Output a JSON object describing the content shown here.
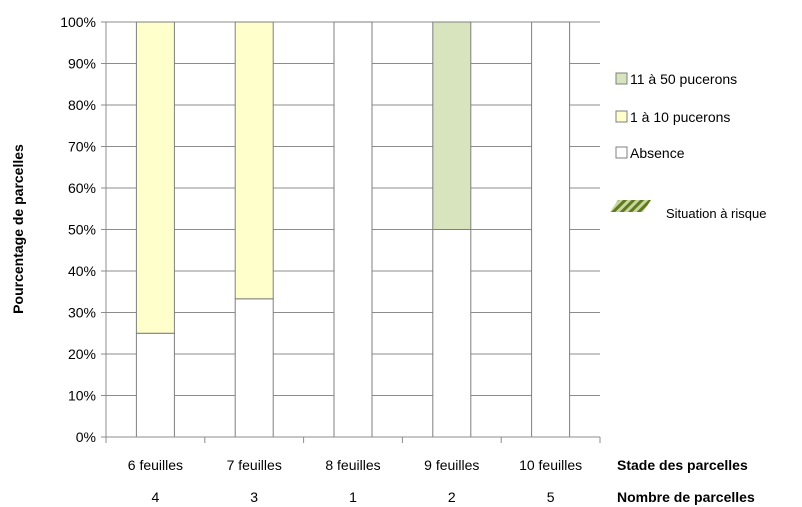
{
  "chart_data": {
    "type": "bar",
    "stacked": true,
    "ylabel": "Pourcentage de parcelles",
    "ylim": [
      0,
      100
    ],
    "yticks": [
      "0%",
      "10%",
      "20%",
      "30%",
      "40%",
      "50%",
      "60%",
      "70%",
      "80%",
      "90%",
      "100%"
    ],
    "grid": true,
    "categories": [
      "6 feuilles",
      "7 feuilles",
      "8 feuilles",
      "9 feuilles",
      "10 feuilles"
    ],
    "counts": [
      "4",
      "3",
      "1",
      "2",
      "5"
    ],
    "xlabel_row1": "Stade des parcelles",
    "xlabel_row2": "Nombre de parcelles",
    "series": [
      {
        "name": "Absence",
        "color": "#ffffff",
        "values": [
          25,
          33.3,
          100,
          50,
          100
        ]
      },
      {
        "name": "1 à 10 pucerons",
        "color": "#ffffcc",
        "values": [
          75,
          66.7,
          0,
          0,
          0
        ]
      },
      {
        "name": "11 à 50 pucerons",
        "color": "#d7e4bd",
        "values": [
          0,
          0,
          0,
          50,
          0
        ]
      }
    ],
    "legend_position": "right",
    "legend": [
      {
        "label": "11 à 50 pucerons",
        "color": "#d7e4bd"
      },
      {
        "label": "1 à 10 pucerons",
        "color": "#ffffcc"
      },
      {
        "label": "Absence",
        "color": "#ffffff"
      },
      {
        "label": "Situation à risque",
        "pattern": "hatched",
        "color": "#6b7f2a"
      }
    ]
  }
}
